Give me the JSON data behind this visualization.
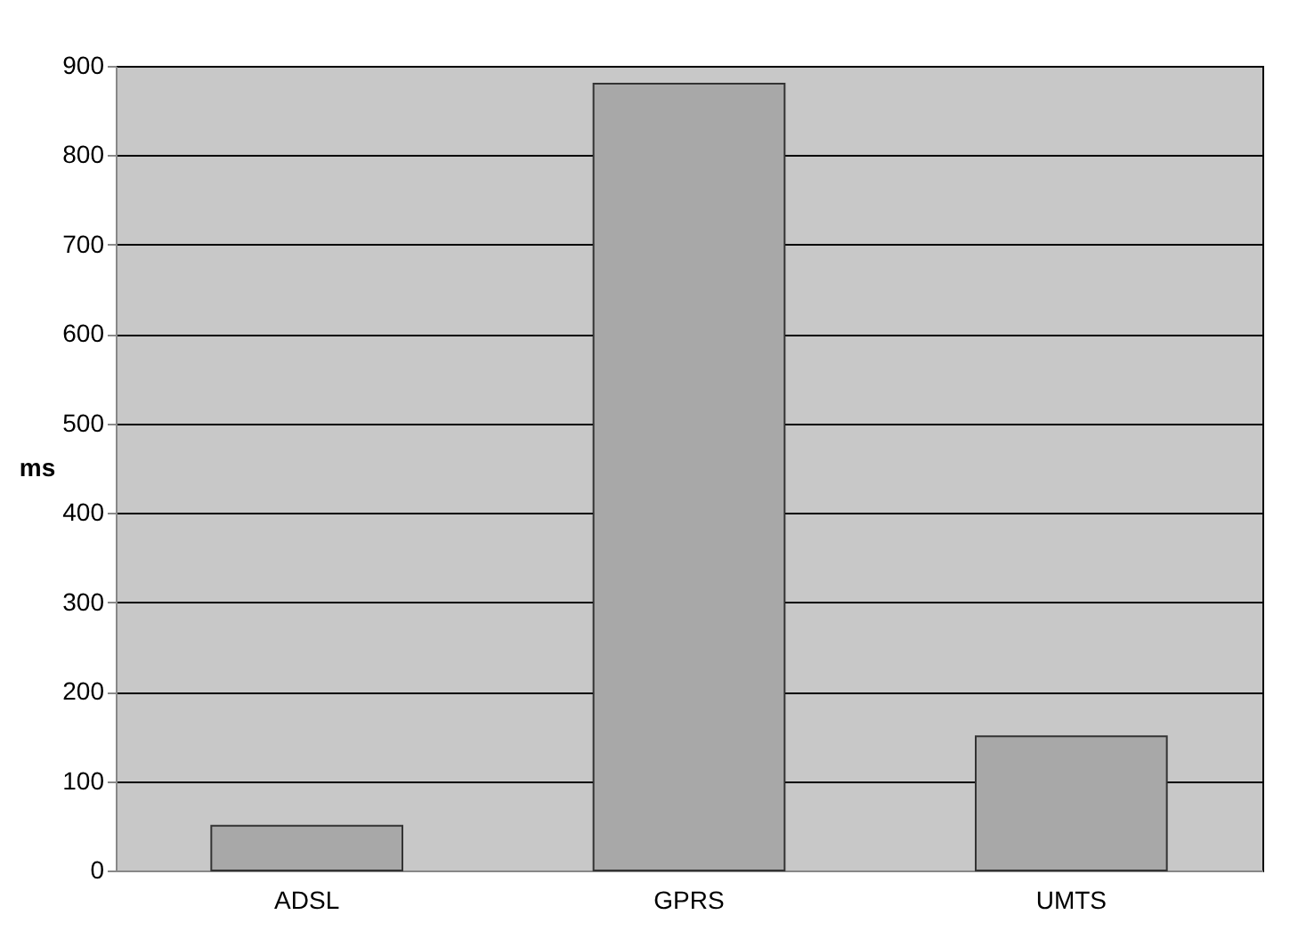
{
  "chart_data": {
    "type": "bar",
    "ylabel": "ms",
    "categories": [
      "ADSL",
      "GPRS",
      "UMTS"
    ],
    "values": [
      50,
      880,
      150
    ],
    "color": "#a8a8a8",
    "ylim": [
      0,
      900
    ],
    "yticks": [
      0,
      100,
      200,
      300,
      400,
      500,
      600,
      700,
      800,
      900
    ],
    "grid": "y"
  }
}
